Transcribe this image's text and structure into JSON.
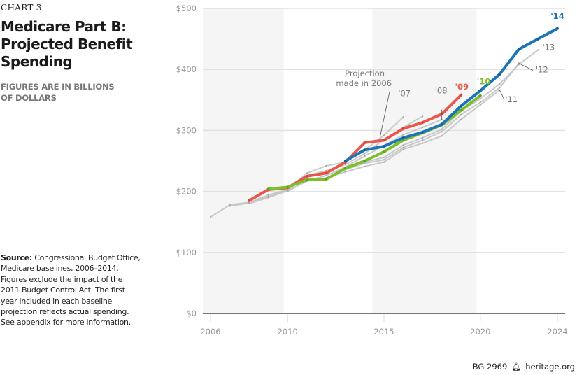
{
  "header": {
    "chart_number": "CHART 3",
    "title_lines": [
      "Medicare Part B:",
      "Projected Benefit",
      "Spending"
    ],
    "subtitle_lines": [
      "FIGURES ARE IN BILLIONS",
      "OF DOLLARS"
    ]
  },
  "source": {
    "label": "Source:",
    "text": " Congressional Budget Office, Medicare baselines, 2006–2014. Figures exclude the impact of the 2011 Budget Control Act. The first year included in each baseline projection reflects actual spending. See appendix for more information."
  },
  "footer": {
    "code": "BG 2969",
    "icon": "liberty-bell-icon",
    "site": "heritage.org"
  },
  "colors": {
    "red": "#e8574a",
    "green": "#7cbf2a",
    "blue": "#1b75b7",
    "grey": "#c4c4c4",
    "band": "#f5f5f5",
    "grid": "#e2e2e2",
    "axis": "#777777",
    "tick_text": "#999999"
  },
  "chart_data": {
    "type": "line",
    "title": "Medicare Part B: Projected Benefit Spending",
    "xlabel": "",
    "ylabel": "Billions of dollars",
    "xlim": [
      2006,
      2024
    ],
    "ylim": [
      0,
      500
    ],
    "grid": true,
    "x_ticks": [
      2006,
      2010,
      2015,
      2020,
      2024
    ],
    "x_tick_labels": [
      "2006",
      "2010",
      "2015",
      "2020",
      "2024"
    ],
    "y_ticks": [
      0,
      100,
      200,
      300,
      400,
      500
    ],
    "y_tick_labels": [
      "$0",
      "$100",
      "$200",
      "$300",
      "$400",
      "$500"
    ],
    "shaded_bands": [
      [
        2006,
        2009.8
      ],
      [
        2014.8,
        2019.8
      ]
    ],
    "series": [
      {
        "name": "'06",
        "label": "Projection made in 2006",
        "color": "grey",
        "x": [
          2006,
          2007,
          2008,
          2009,
          2010,
          2011,
          2012,
          2013,
          2014,
          2015,
          2016
        ],
        "y": [
          158,
          178,
          182,
          194,
          203,
          230,
          242,
          248,
          268,
          292,
          322
        ]
      },
      {
        "name": "'07",
        "label": "'07",
        "color": "grey",
        "x": [
          2007,
          2008,
          2009,
          2010,
          2011,
          2012,
          2013,
          2014,
          2015,
          2016,
          2017
        ],
        "y": [
          176,
          181,
          192,
          202,
          226,
          234,
          244,
          262,
          285,
          305,
          323
        ]
      },
      {
        "name": "'08",
        "label": "'08",
        "color": "grey",
        "x": [
          2008,
          2009,
          2010,
          2011,
          2012,
          2013,
          2014,
          2015,
          2016,
          2017,
          2018
        ],
        "y": [
          180,
          190,
          201,
          217,
          226,
          240,
          258,
          275,
          293,
          305,
          318
        ]
      },
      {
        "name": "'09",
        "label": "'09",
        "color": "red",
        "x": [
          2008,
          2009,
          2010,
          2011,
          2012,
          2013,
          2014,
          2015,
          2016,
          2017,
          2018,
          2019
        ],
        "y": [
          185,
          203,
          206,
          225,
          230,
          248,
          280,
          284,
          303,
          313,
          327,
          358
        ]
      },
      {
        "name": "'10",
        "label": "'10",
        "color": "green",
        "x": [
          2009,
          2010,
          2011,
          2012,
          2013,
          2014,
          2015,
          2016,
          2017,
          2018,
          2019,
          2020
        ],
        "y": [
          204,
          207,
          219,
          220,
          238,
          250,
          265,
          284,
          296,
          309,
          333,
          357
        ]
      },
      {
        "name": "'11",
        "label": "'11",
        "color": "grey",
        "x": [
          2010,
          2011,
          2012,
          2013,
          2014,
          2015,
          2016,
          2017,
          2018,
          2019,
          2020,
          2021
        ],
        "y": [
          200,
          218,
          222,
          232,
          241,
          248,
          269,
          279,
          291,
          318,
          342,
          366
        ]
      },
      {
        "name": "'12",
        "label": "'12",
        "color": "grey",
        "x": [
          2011,
          2012,
          2013,
          2014,
          2015,
          2016,
          2017,
          2018,
          2019,
          2020,
          2021,
          2022
        ],
        "y": [
          218,
          222,
          236,
          246,
          252,
          272,
          284,
          298,
          326,
          346,
          370,
          410
        ]
      },
      {
        "name": "'13",
        "label": "'13",
        "color": "grey",
        "x": [
          2012,
          2013,
          2014,
          2015,
          2016,
          2017,
          2018,
          2019,
          2020,
          2021,
          2022,
          2023
        ],
        "y": [
          222,
          236,
          248,
          256,
          276,
          288,
          302,
          332,
          352,
          376,
          408,
          432
        ]
      },
      {
        "name": "'14",
        "label": "'14",
        "color": "blue",
        "x": [
          2013,
          2014,
          2015,
          2016,
          2017,
          2018,
          2019,
          2020,
          2021,
          2022,
          2023,
          2024
        ],
        "y": [
          250,
          268,
          274,
          288,
          297,
          310,
          340,
          365,
          392,
          433,
          450,
          467
        ]
      }
    ],
    "annotations": [
      {
        "text_lines": [
          "Projection",
          "made in 2006"
        ],
        "series": "'06",
        "color": "grey"
      },
      {
        "text": "'07",
        "series": "'07",
        "color": "grey"
      },
      {
        "text": "'08",
        "series": "'08",
        "color": "grey"
      },
      {
        "text": "'09",
        "series": "'09",
        "color": "red"
      },
      {
        "text": "'10",
        "series": "'10",
        "color": "green"
      },
      {
        "text": "'11",
        "series": "'11",
        "color": "grey"
      },
      {
        "text": "'12",
        "series": "'12",
        "color": "grey"
      },
      {
        "text": "'13",
        "series": "'13",
        "color": "grey"
      },
      {
        "text": "'14",
        "series": "'14",
        "color": "blue"
      }
    ]
  }
}
